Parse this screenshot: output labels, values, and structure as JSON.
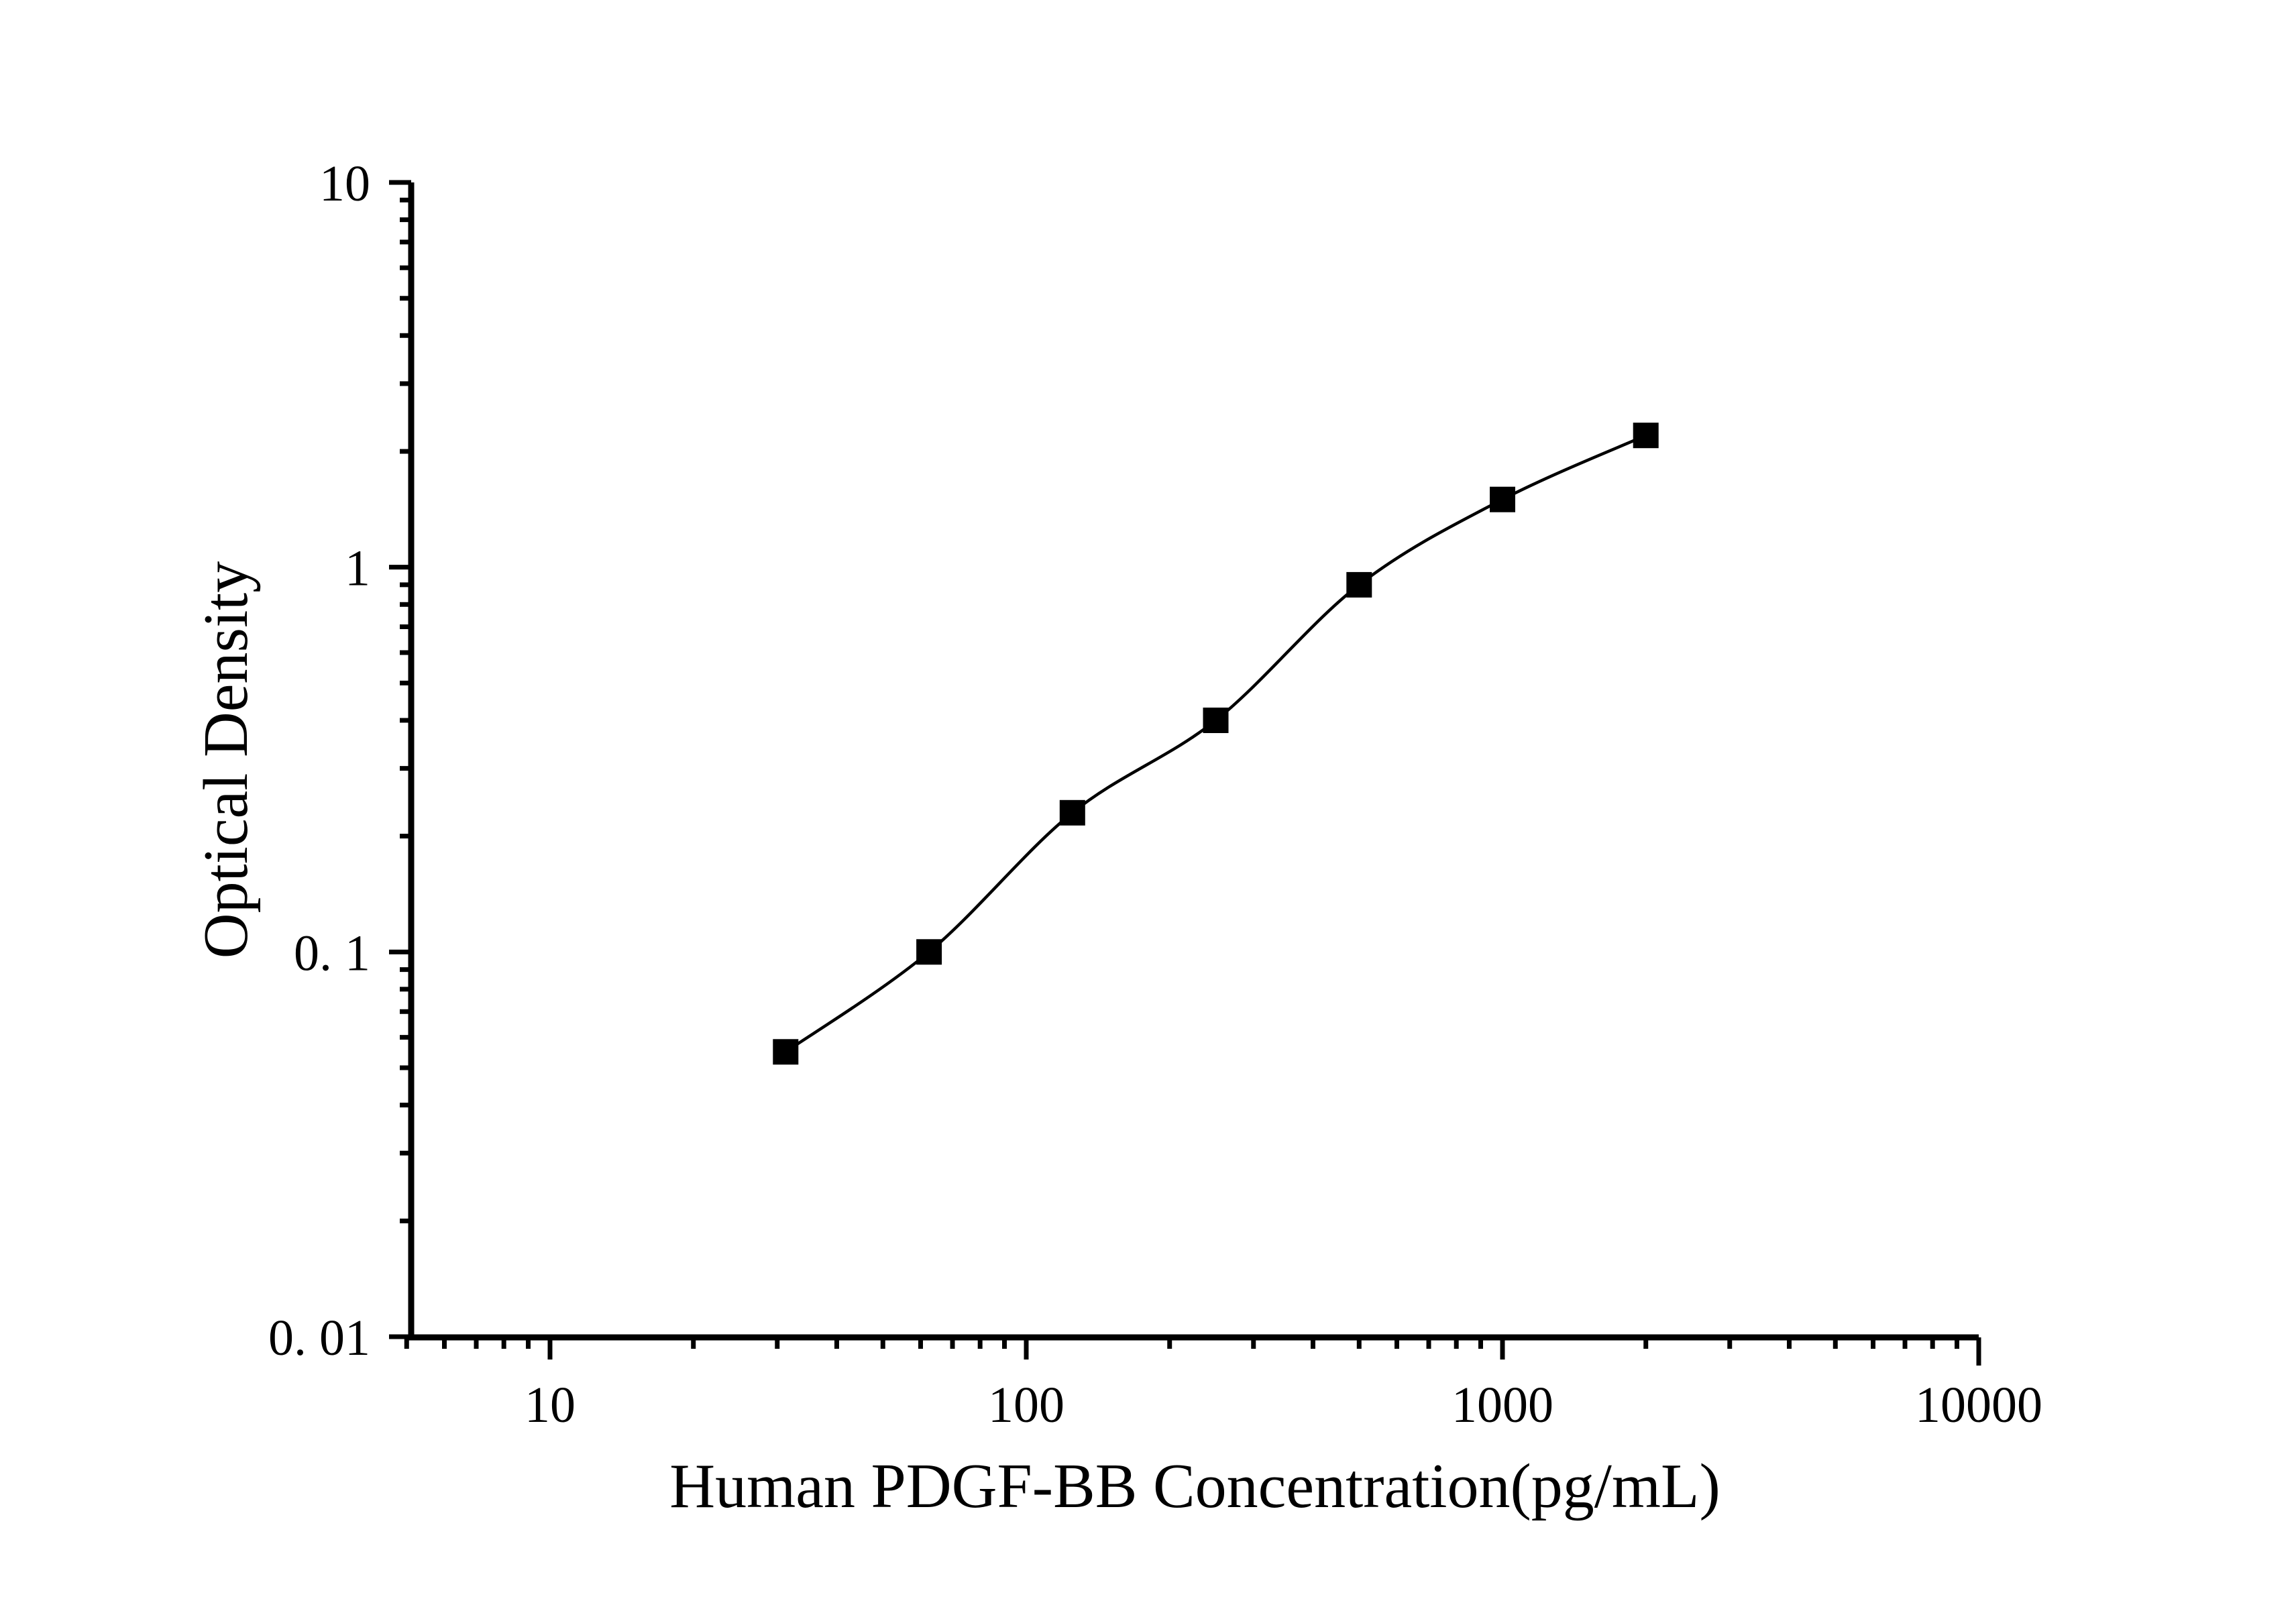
{
  "figure": {
    "background_color": "#ffffff",
    "foreground_color": "#000000"
  },
  "chart_data": {
    "type": "line",
    "title": "",
    "xlabel": "Human PDGF-BB Concentration(pg/mL)",
    "ylabel": "Optical Density",
    "x_scale": "log",
    "y_scale": "log",
    "x": [
      31.25,
      62.5,
      125,
      250,
      500,
      1000,
      2000
    ],
    "y": [
      0.055,
      0.1,
      0.23,
      0.4,
      0.9,
      1.5,
      2.2
    ],
    "series": [
      {
        "name": "standard-curve",
        "marker": "filled-square",
        "marker_color": "#000000",
        "line_color": "#000000"
      }
    ],
    "xlim": [
      5,
      10000
    ],
    "ylim": [
      0.01,
      10
    ],
    "x_ticks": [
      10,
      100,
      1000,
      10000
    ],
    "x_tick_labels": [
      "10",
      "100",
      "1000",
      "10000"
    ],
    "y_ticks": [
      10,
      1,
      0.1,
      0.01
    ],
    "y_tick_labels": [
      "10",
      "1",
      "0. 1",
      "0. 01"
    ],
    "grid": false,
    "legend": null
  }
}
